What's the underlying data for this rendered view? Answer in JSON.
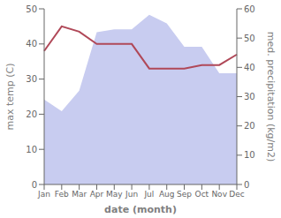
{
  "chart_data": {
    "type": "line",
    "categories": [
      "Jan",
      "Feb",
      "Mar",
      "Apr",
      "May",
      "Jun",
      "Jul",
      "Aug",
      "Sep",
      "Oct",
      "Nov",
      "Dec"
    ],
    "series": [
      {
        "type": "area",
        "axis": "y2",
        "color": "#c8ccf0",
        "values": [
          29,
          25,
          32,
          52,
          53,
          53,
          58,
          55,
          47,
          47,
          38,
          38
        ]
      },
      {
        "type": "line",
        "color": "#b04858",
        "values": [
          38,
          45,
          43.5,
          40,
          40,
          40,
          33,
          33,
          33,
          34,
          34,
          37
        ]
      }
    ],
    "xlabel": "date (month)",
    "ylabel": "max temp (C)",
    "y2label": "med. precipitation (kg/m2)",
    "ylim": [
      0,
      50
    ],
    "yticks": [
      0,
      10,
      20,
      30,
      40,
      50
    ],
    "y2lim": [
      0,
      60
    ],
    "y2ticks": [
      0,
      10,
      20,
      30,
      40,
      50,
      60
    ],
    "grid": false
  }
}
